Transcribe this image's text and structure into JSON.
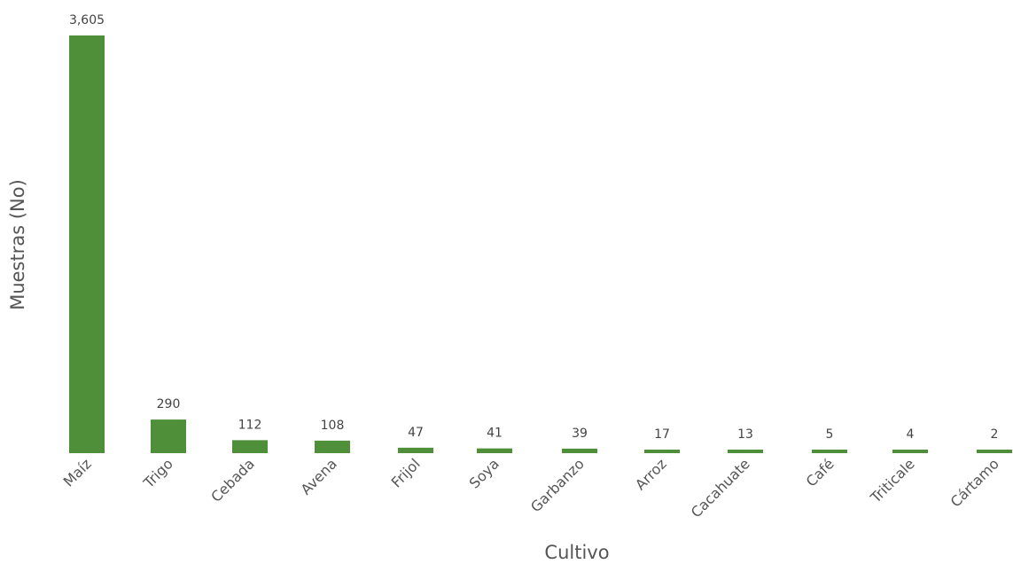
{
  "chart_data": {
    "type": "bar",
    "title": "",
    "xlabel": "Cultivo",
    "ylabel": "Muestras (No)",
    "categories": [
      "Maíz",
      "Trigo",
      "Cebada",
      "Avena",
      "Frijol",
      "Soya",
      "Garbanzo",
      "Arroz",
      "Cacahuate",
      "Café",
      "Triticale",
      "Cártamo"
    ],
    "values": [
      3605,
      290,
      112,
      108,
      47,
      41,
      39,
      17,
      13,
      5,
      4,
      2
    ],
    "value_labels": [
      "3,605",
      "290",
      "112",
      "108",
      "47",
      "41",
      "39",
      "17",
      "13",
      "5",
      "4",
      "2"
    ],
    "ylim": [
      0,
      3605
    ],
    "grid": false,
    "legend": "none",
    "bar_color": "#4f8f3a"
  }
}
